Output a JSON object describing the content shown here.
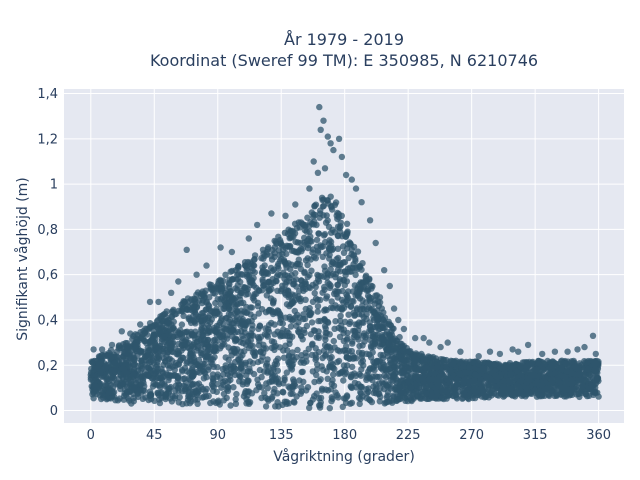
{
  "chart_data": {
    "type": "scatter",
    "title_line1": "År 1979 - 2019",
    "title_line2": "Koordinat (Sweref 99 TM): E 350985, N 6210746",
    "xlabel": "Vågriktning (grader)",
    "ylabel": "Signifikant våghöjd (m)",
    "xlim": [
      -19,
      378
    ],
    "ylim": [
      -0.055,
      1.42
    ],
    "xticks": [
      0,
      45,
      90,
      135,
      180,
      225,
      270,
      315,
      360
    ],
    "xtick_labels": [
      "0",
      "45",
      "90",
      "135",
      "180",
      "225",
      "270",
      "315",
      "360"
    ],
    "yticks": [
      0,
      0.2,
      0.4,
      0.6,
      0.8,
      1.0,
      1.2,
      1.4
    ],
    "ytick_labels": [
      "0",
      "0,2",
      "0,4",
      "0,6",
      "0,8",
      "1",
      "1,2",
      "1,4"
    ],
    "marker_color": "#2f566c",
    "grid": true,
    "legend": "none",
    "envelope": {
      "x": [
        0,
        15,
        30,
        45,
        60,
        75,
        90,
        105,
        120,
        135,
        150,
        160,
        168,
        175,
        185,
        195,
        205,
        215,
        225,
        240,
        255,
        270,
        285,
        300,
        315,
        330,
        345,
        360
      ],
      "upper": [
        0.22,
        0.27,
        0.33,
        0.4,
        0.47,
        0.52,
        0.58,
        0.64,
        0.7,
        0.78,
        0.86,
        0.92,
        0.97,
        0.92,
        0.78,
        0.62,
        0.48,
        0.36,
        0.27,
        0.24,
        0.22,
        0.22,
        0.21,
        0.21,
        0.22,
        0.22,
        0.22,
        0.22
      ],
      "lower": [
        0.05,
        0.04,
        0.03,
        0.02,
        0.02,
        0.02,
        0.02,
        0.02,
        0.02,
        0.01,
        0.01,
        0.01,
        0.01,
        0.01,
        0.02,
        0.03,
        0.03,
        0.03,
        0.04,
        0.05,
        0.05,
        0.05,
        0.06,
        0.06,
        0.06,
        0.06,
        0.06,
        0.06
      ]
    },
    "outliers": [
      {
        "x": 162,
        "y": 1.34
      },
      {
        "x": 165,
        "y": 1.28
      },
      {
        "x": 163,
        "y": 1.24
      },
      {
        "x": 168,
        "y": 1.21
      },
      {
        "x": 176,
        "y": 1.2
      },
      {
        "x": 170,
        "y": 1.18
      },
      {
        "x": 172,
        "y": 1.15
      },
      {
        "x": 158,
        "y": 1.1
      },
      {
        "x": 178,
        "y": 1.12
      },
      {
        "x": 166,
        "y": 1.07
      },
      {
        "x": 181,
        "y": 1.04
      },
      {
        "x": 185,
        "y": 1.02
      },
      {
        "x": 161,
        "y": 1.05
      },
      {
        "x": 188,
        "y": 0.98
      },
      {
        "x": 192,
        "y": 0.92
      },
      {
        "x": 155,
        "y": 0.98
      },
      {
        "x": 198,
        "y": 0.84
      },
      {
        "x": 145,
        "y": 0.91
      },
      {
        "x": 138,
        "y": 0.86
      },
      {
        "x": 128,
        "y": 0.87
      },
      {
        "x": 118,
        "y": 0.82
      },
      {
        "x": 112,
        "y": 0.76
      },
      {
        "x": 92,
        "y": 0.72
      },
      {
        "x": 68,
        "y": 0.71
      },
      {
        "x": 82,
        "y": 0.64
      },
      {
        "x": 75,
        "y": 0.6
      },
      {
        "x": 100,
        "y": 0.7
      },
      {
        "x": 202,
        "y": 0.74
      },
      {
        "x": 208,
        "y": 0.62
      },
      {
        "x": 212,
        "y": 0.55
      },
      {
        "x": 205,
        "y": 0.5
      },
      {
        "x": 215,
        "y": 0.45
      },
      {
        "x": 218,
        "y": 0.4
      },
      {
        "x": 222,
        "y": 0.36
      },
      {
        "x": 230,
        "y": 0.32
      },
      {
        "x": 236,
        "y": 0.32
      },
      {
        "x": 240,
        "y": 0.3
      },
      {
        "x": 248,
        "y": 0.28
      },
      {
        "x": 253,
        "y": 0.3
      },
      {
        "x": 262,
        "y": 0.26
      },
      {
        "x": 275,
        "y": 0.24
      },
      {
        "x": 283,
        "y": 0.26
      },
      {
        "x": 290,
        "y": 0.25
      },
      {
        "x": 299,
        "y": 0.27
      },
      {
        "x": 303,
        "y": 0.26
      },
      {
        "x": 310,
        "y": 0.29
      },
      {
        "x": 320,
        "y": 0.25
      },
      {
        "x": 329,
        "y": 0.26
      },
      {
        "x": 338,
        "y": 0.26
      },
      {
        "x": 345,
        "y": 0.27
      },
      {
        "x": 350,
        "y": 0.28
      },
      {
        "x": 356,
        "y": 0.33
      },
      {
        "x": 358,
        "y": 0.25
      },
      {
        "x": 42,
        "y": 0.48
      },
      {
        "x": 48,
        "y": 0.48
      },
      {
        "x": 35,
        "y": 0.38
      },
      {
        "x": 28,
        "y": 0.34
      },
      {
        "x": 22,
        "y": 0.35
      },
      {
        "x": 15,
        "y": 0.29
      },
      {
        "x": 8,
        "y": 0.27
      },
      {
        "x": 2,
        "y": 0.27
      },
      {
        "x": 57,
        "y": 0.52
      },
      {
        "x": 62,
        "y": 0.57
      }
    ]
  }
}
